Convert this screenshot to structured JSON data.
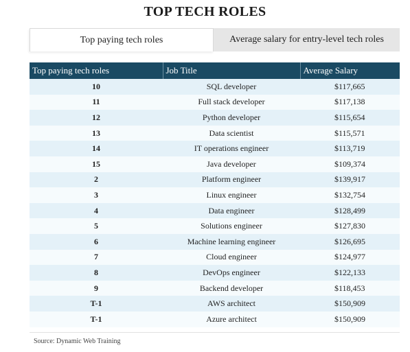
{
  "title": "TOP TECH ROLES",
  "tabs": [
    {
      "label": "Top paying tech roles",
      "active": true
    },
    {
      "label": "Average salary for entry-level tech roles",
      "active": false
    }
  ],
  "table": {
    "headers": [
      "Top paying tech roles",
      "Job Title",
      "Average Salary"
    ],
    "rows": [
      {
        "rank": "10",
        "title": "SQL developer",
        "salary": "$117,665"
      },
      {
        "rank": "11",
        "title": "Full stack developer",
        "salary": "$117,138"
      },
      {
        "rank": "12",
        "title": "Python developer",
        "salary": "$115,654"
      },
      {
        "rank": "13",
        "title": "Data scientist",
        "salary": "$115,571"
      },
      {
        "rank": "14",
        "title": "IT operations engineer",
        "salary": "$113,719"
      },
      {
        "rank": "15",
        "title": "Java developer",
        "salary": "$109,374"
      },
      {
        "rank": "2",
        "title": "Platform engineer",
        "salary": "$139,917"
      },
      {
        "rank": "3",
        "title": "Linux engineer",
        "salary": "$132,754"
      },
      {
        "rank": "4",
        "title": "Data engineer",
        "salary": "$128,499"
      },
      {
        "rank": "5",
        "title": "Solutions engineer",
        "salary": "$127,830"
      },
      {
        "rank": "6",
        "title": "Machine learning engineer",
        "salary": "$126,695"
      },
      {
        "rank": "7",
        "title": "Cloud engineer",
        "salary": "$124,977"
      },
      {
        "rank": "8",
        "title": "DevOps engineer",
        "salary": "$122,133"
      },
      {
        "rank": "9",
        "title": "Backend developer",
        "salary": "$118,453"
      },
      {
        "rank": "T-1",
        "title": "AWS architect",
        "salary": "$150,909"
      },
      {
        "rank": "T-1",
        "title": "Azure architect",
        "salary": "$150,909"
      }
    ]
  },
  "source": "Source: Dynamic Web Training",
  "colors": {
    "header_bg": "#1a4a63",
    "row_odd": "#e4f1f8",
    "row_even": "#f6fbfd",
    "inactive_tab": "#e6e6e6"
  }
}
